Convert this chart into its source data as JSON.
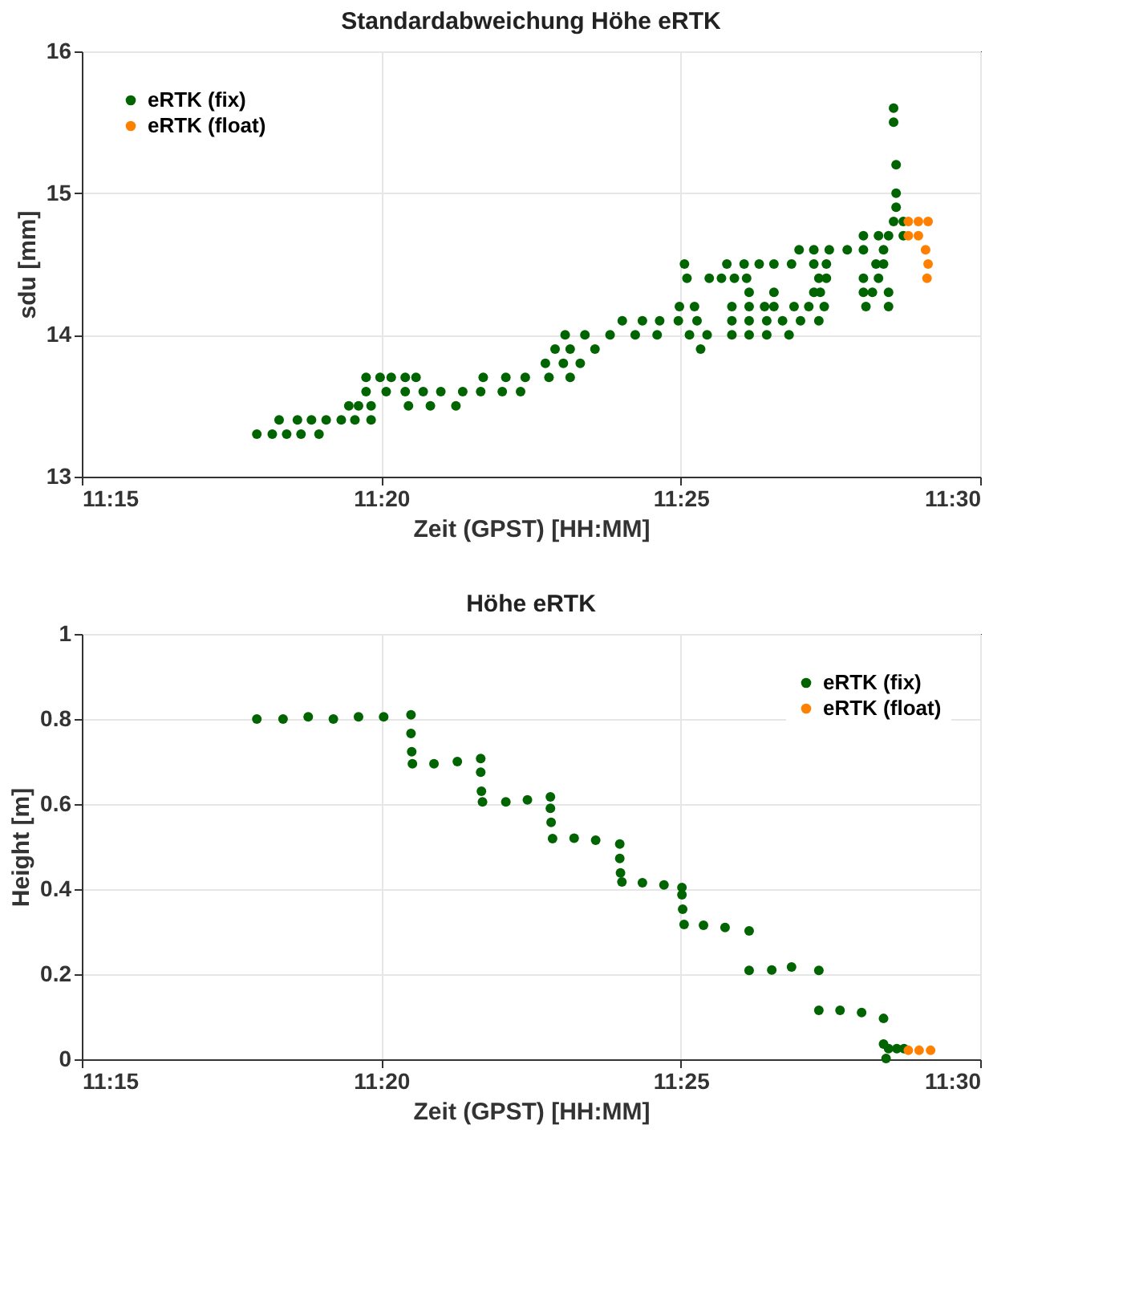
{
  "chart_data": [
    {
      "type": "scatter",
      "title": "Standardabweichung Höhe eRTK",
      "xlabel": "Zeit (GPST) [HH:MM]",
      "ylabel": "sdu [mm]",
      "xlim": [
        11.25,
        11.5
      ],
      "xticks": [
        {
          "value": 11.25,
          "label": "11:15"
        },
        {
          "value": 11.333333,
          "label": "11:20"
        },
        {
          "value": 11.416667,
          "label": "11:25"
        },
        {
          "value": 11.5,
          "label": "11:30"
        }
      ],
      "ylim": [
        13,
        16
      ],
      "yticks": [
        13,
        14,
        15,
        16
      ],
      "grid": true,
      "legend": "top left",
      "marker": "circle",
      "series": [
        {
          "name": "eRTK (fix)",
          "color": "#006400",
          "x": [
            11.2987,
            11.303,
            11.307,
            11.311,
            11.316,
            11.3049,
            11.31,
            11.3139,
            11.318,
            11.3222,
            11.326,
            11.3305,
            11.3243,
            11.327,
            11.3305,
            11.3291,
            11.333,
            11.3361,
            11.34,
            11.343,
            11.3291,
            11.3347,
            11.34,
            11.345,
            11.3499,
            11.356,
            11.361,
            11.367,
            11.3721,
            11.3409,
            11.347,
            11.3541,
            11.3617,
            11.368,
            11.3734,
            11.38,
            11.3859,
            11.379,
            11.384,
            11.3887,
            11.3817,
            11.3859,
            11.3928,
            11.3845,
            11.39,
            11.397,
            11.404,
            11.4101,
            11.4004,
            11.406,
            11.4108,
            11.416,
            11.4212,
            11.4163,
            11.4205,
            11.4191,
            11.424,
            11.4222,
            11.4177,
            11.4295,
            11.4343,
            11.4385,
            11.4426,
            11.4475,
            11.4537,
            11.4572,
            11.4184,
            11.4246,
            11.428,
            11.4316,
            11.435,
            11.4551,
            11.4572,
            11.4357,
            11.4426,
            11.4537,
            11.4555,
            11.4309,
            11.4357,
            11.44,
            11.4426,
            11.4482,
            11.4523,
            11.4566,
            11.4309,
            11.4357,
            11.4406,
            11.445,
            11.45,
            11.4551,
            11.4309,
            11.4357,
            11.4406,
            11.4468,
            11.4496,
            11.4537,
            11.458,
            11.463,
            11.4675,
            11.4675,
            11.4717,
            11.4675,
            11.47,
            11.4745,
            11.4682,
            11.4745,
            11.471,
            11.4731,
            11.4731,
            11.4675,
            11.4717,
            11.4745,
            11.4759,
            11.4786,
            11.4786,
            11.4766,
            11.4766,
            11.4766,
            11.4759,
            11.4759
          ],
          "values": [
            13.3,
            13.3,
            13.3,
            13.3,
            13.3,
            13.4,
            13.4,
            13.4,
            13.4,
            13.4,
            13.4,
            13.4,
            13.5,
            13.5,
            13.5,
            13.7,
            13.7,
            13.7,
            13.7,
            13.7,
            13.6,
            13.6,
            13.6,
            13.6,
            13.6,
            13.6,
            13.6,
            13.6,
            13.6,
            13.5,
            13.5,
            13.5,
            13.7,
            13.7,
            13.7,
            13.7,
            13.7,
            13.8,
            13.8,
            13.8,
            13.9,
            13.9,
            13.9,
            14.0,
            14.0,
            14.0,
            14.0,
            14.0,
            14.1,
            14.1,
            14.1,
            14.1,
            14.1,
            14.2,
            14.2,
            14.0,
            14.0,
            13.9,
            14.5,
            14.5,
            14.5,
            14.5,
            14.5,
            14.5,
            14.5,
            14.5,
            14.4,
            14.4,
            14.4,
            14.4,
            14.4,
            14.4,
            14.4,
            14.3,
            14.3,
            14.3,
            14.3,
            14.2,
            14.2,
            14.2,
            14.2,
            14.2,
            14.2,
            14.2,
            14.1,
            14.1,
            14.1,
            14.1,
            14.1,
            14.1,
            14.0,
            14.0,
            14.0,
            14.0,
            14.6,
            14.6,
            14.6,
            14.6,
            14.6,
            14.4,
            14.4,
            14.3,
            14.3,
            14.3,
            14.2,
            14.2,
            14.5,
            14.5,
            14.6,
            14.7,
            14.7,
            14.7,
            14.8,
            14.8,
            14.7,
            14.9,
            15.0,
            15.2,
            15.5,
            15.6
          ]
        },
        {
          "name": "eRTK (float)",
          "color": "#ff8000",
          "x": [
            11.48,
            11.4828,
            11.4855,
            11.48,
            11.4828,
            11.4848,
            11.4855,
            11.4852
          ],
          "values": [
            14.8,
            14.8,
            14.8,
            14.7,
            14.7,
            14.6,
            14.5,
            14.4
          ]
        }
      ]
    },
    {
      "type": "scatter",
      "title": "Höhe eRTK",
      "xlabel": "Zeit (GPST) [HH:MM]",
      "ylabel": "Height [m]",
      "xlim": [
        11.25,
        11.5
      ],
      "xticks": [
        {
          "value": 11.25,
          "label": "11:15"
        },
        {
          "value": 11.333333,
          "label": "11:20"
        },
        {
          "value": 11.416667,
          "label": "11:25"
        },
        {
          "value": 11.5,
          "label": "11:30"
        }
      ],
      "ylim": [
        0,
        1
      ],
      "yticks": [
        0,
        0.2,
        0.4,
        0.6,
        0.8,
        1
      ],
      "grid": true,
      "legend": "top right",
      "marker": "circle",
      "series": [
        {
          "name": "eRTK (fix)",
          "color": "#006400",
          "x": [
            11.2987,
            11.306,
            11.313,
            11.32,
            11.327,
            11.334,
            11.3416,
            11.3416,
            11.3418,
            11.342,
            11.348,
            11.3545,
            11.361,
            11.361,
            11.3612,
            11.3615,
            11.368,
            11.374,
            11.3804,
            11.3804,
            11.3806,
            11.381,
            11.387,
            11.393,
            11.3997,
            11.3997,
            11.3999,
            11.4003,
            11.406,
            11.412,
            11.417,
            11.417,
            11.4172,
            11.4176,
            11.423,
            11.429,
            11.4357,
            11.4357,
            11.442,
            11.4475,
            11.4551,
            11.4551,
            11.461,
            11.467,
            11.4731,
            11.4731,
            11.4738,
            11.4745,
            11.4768,
            11.4788
          ],
          "values": [
            0.8,
            0.8,
            0.805,
            0.8,
            0.805,
            0.805,
            0.81,
            0.766,
            0.723,
            0.695,
            0.695,
            0.7,
            0.707,
            0.675,
            0.63,
            0.605,
            0.605,
            0.61,
            0.617,
            0.59,
            0.557,
            0.519,
            0.52,
            0.515,
            0.506,
            0.472,
            0.438,
            0.417,
            0.415,
            0.41,
            0.404,
            0.387,
            0.353,
            0.317,
            0.315,
            0.31,
            0.302,
            0.209,
            0.21,
            0.217,
            0.209,
            0.115,
            0.115,
            0.11,
            0.096,
            0.036,
            0.002,
            0.025,
            0.025,
            0.025
          ]
        },
        {
          "name": "eRTK (float)",
          "color": "#ff8000",
          "x": [
            11.48,
            11.483,
            11.4862
          ],
          "values": [
            0.021,
            0.021,
            0.021
          ]
        }
      ]
    }
  ]
}
